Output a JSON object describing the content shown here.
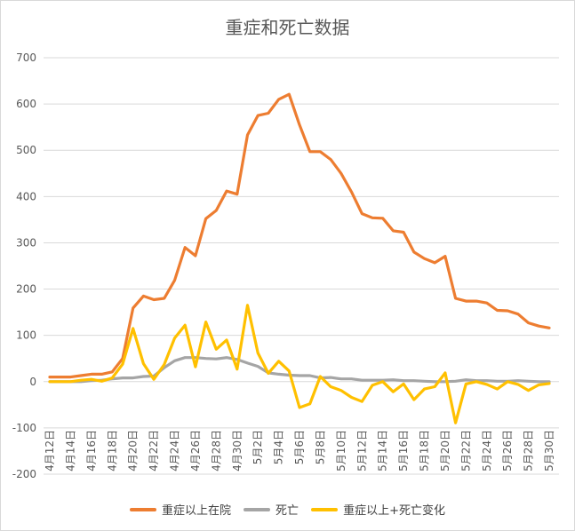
{
  "chart_data": {
    "type": "line",
    "title": "重症和死亡数据",
    "xlabel": "",
    "ylabel": "",
    "ylim": [
      -200,
      700
    ],
    "y_ticks": [
      "700",
      "600",
      "500",
      "400",
      "300",
      "200",
      "100",
      "0",
      "-100",
      "-200"
    ],
    "x_tick_labels": [
      "4月12日",
      "4月14日",
      "4月16日",
      "4月18日",
      "4月20日",
      "4月22日",
      "4月24日",
      "4月26日",
      "4月28日",
      "4月30日",
      "5月2日",
      "5月4日",
      "5月6日",
      "5月8日",
      "5月10日",
      "5月12日",
      "5月14日",
      "5月16日",
      "5月18日",
      "5月20日",
      "5月22日",
      "5月24日",
      "5月26日",
      "5月28日",
      "5月30日"
    ],
    "grid": true,
    "legend_position": "bottom",
    "series": [
      {
        "name": "重症以上在院",
        "color": "#ED7D31",
        "values": [
          10,
          10,
          10,
          13,
          16,
          16,
          21,
          50,
          159,
          185,
          177,
          180,
          219,
          290,
          272,
          352,
          370,
          412,
          405,
          533,
          575,
          580,
          610,
          621,
          555,
          497,
          497,
          480,
          450,
          410,
          363,
          354,
          353,
          326,
          323,
          280,
          266,
          257,
          271,
          180,
          174,
          174,
          170,
          154,
          153,
          146,
          127,
          120,
          116
        ]
      },
      {
        "name": "死亡",
        "color": "#A5A5A5",
        "values": [
          0,
          0,
          0,
          0,
          2,
          3,
          6,
          8,
          8,
          11,
          12,
          30,
          45,
          52,
          52,
          50,
          49,
          52,
          48,
          40,
          33,
          19,
          16,
          14,
          13,
          13,
          8,
          9,
          6,
          6,
          3,
          3,
          3,
          4,
          2,
          2,
          1,
          0,
          0,
          1,
          4,
          2,
          2,
          1,
          1,
          2,
          1,
          0,
          0
        ]
      },
      {
        "name": "重症以上+死亡变化",
        "color": "#FFC000",
        "values": [
          0,
          0,
          0,
          3,
          5,
          1,
          8,
          38,
          115,
          39,
          5,
          37,
          94,
          122,
          32,
          129,
          70,
          90,
          27,
          165,
          62,
          18,
          44,
          23,
          -56,
          -48,
          11,
          -11,
          -19,
          -34,
          -43,
          -8,
          0,
          -22,
          -5,
          -39,
          -16,
          -11,
          19,
          -89,
          -5,
          0,
          -6,
          -16,
          0,
          -6,
          -19,
          -7,
          -4
        ]
      }
    ]
  }
}
